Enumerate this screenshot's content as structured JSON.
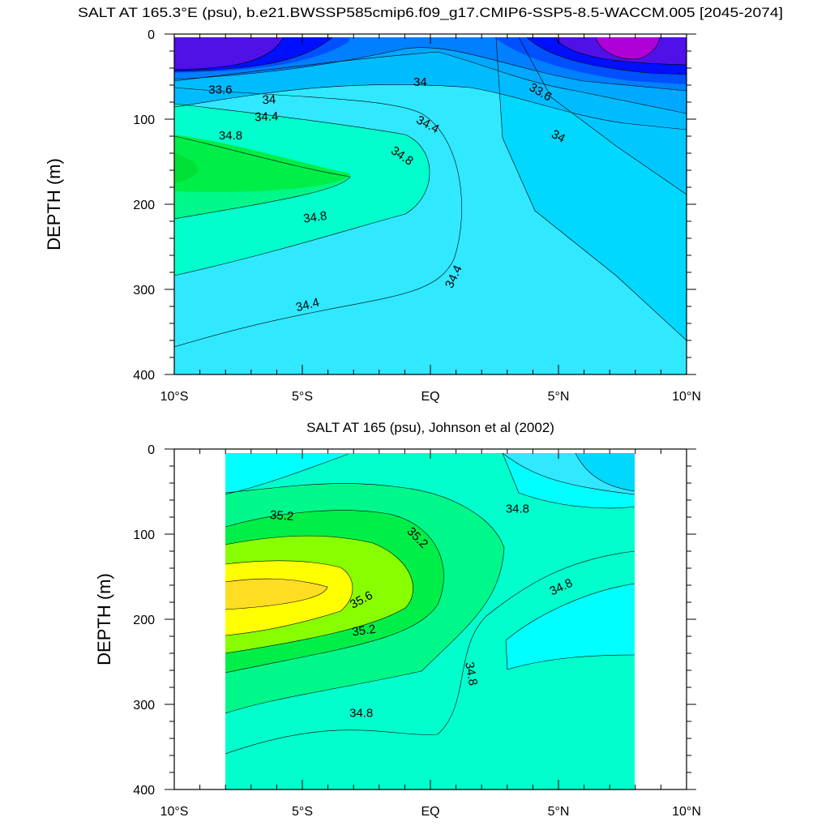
{
  "chart_data": [
    {
      "type": "contour",
      "title": "SALT AT 165.3°E (psu), b.e21.BWSSP585cmip6.f09_g17.CMIP6-SSP5-8.5-WACCM.005 [2045-2074]",
      "ylabel": "DEPTH (m)",
      "xlabel": "",
      "xlim": [
        -10,
        10
      ],
      "ylim": [
        0,
        400
      ],
      "x_ticks": [
        -10,
        -5,
        0,
        5,
        10
      ],
      "x_tick_labels": [
        "10°S",
        "5°S",
        "EQ",
        "5°N",
        "10°N"
      ],
      "y_ticks": [
        0,
        100,
        200,
        300,
        400
      ],
      "y_tick_labels": [
        "0",
        "100",
        "200",
        "300",
        "400"
      ],
      "data_extent": {
        "lat": [
          -10,
          10
        ],
        "depth": [
          5,
          400
        ]
      },
      "contour_levels": [
        33.2,
        33.4,
        33.6,
        33.8,
        34.0,
        34.2,
        34.4,
        34.6,
        34.8,
        35.0
      ],
      "fill_colors": [
        "#b000d8",
        "#7818e0",
        "#4000e8",
        "#0010ff",
        "#0060ff",
        "#0098ff",
        "#00bcff",
        "#00d8ff",
        "#30e8ff",
        "#00ffff",
        "#00ffcc",
        "#00f88a",
        "#00ee48"
      ],
      "contour_labels": [
        {
          "text": "33.6",
          "lat": -8.2,
          "depth": 65,
          "angle": 0
        },
        {
          "text": "34",
          "lat": -6.3,
          "depth": 77,
          "angle": -3
        },
        {
          "text": "34",
          "lat": -0.4,
          "depth": 56,
          "angle": 0
        },
        {
          "text": "33.6",
          "lat": 4.3,
          "depth": 68,
          "angle": 30
        },
        {
          "text": "34.4",
          "lat": -6.4,
          "depth": 97,
          "angle": -2
        },
        {
          "text": "34.4",
          "lat": -0.1,
          "depth": 106,
          "angle": 28
        },
        {
          "text": "34",
          "lat": 5.0,
          "depth": 120,
          "angle": 28
        },
        {
          "text": "34.8",
          "lat": -7.8,
          "depth": 119,
          "angle": 0
        },
        {
          "text": "34.8",
          "lat": -1.1,
          "depth": 143,
          "angle": 34
        },
        {
          "text": "34.8",
          "lat": -4.5,
          "depth": 215,
          "angle": -8
        },
        {
          "text": "34.4",
          "lat": 0.9,
          "depth": 285,
          "angle": -65
        },
        {
          "text": "34.4",
          "lat": -4.8,
          "depth": 318,
          "angle": -14
        }
      ]
    },
    {
      "type": "contour",
      "title": "SALT AT 165 (psu), Johnson et al (2002)",
      "ylabel": "DEPTH (m)",
      "xlabel": "",
      "xlim": [
        -10,
        10
      ],
      "ylim": [
        0,
        400
      ],
      "x_ticks": [
        -10,
        -5,
        0,
        5,
        10
      ],
      "x_tick_labels": [
        "10°S",
        "5°S",
        "EQ",
        "5°N",
        "10°N"
      ],
      "y_ticks": [
        0,
        100,
        200,
        300,
        400
      ],
      "y_tick_labels": [
        "0",
        "100",
        "200",
        "300",
        "400"
      ],
      "data_extent": {
        "lat": [
          -8,
          8
        ],
        "depth": [
          5,
          400
        ]
      },
      "contour_levels": [
        34.4,
        34.6,
        34.8,
        35.0,
        35.2,
        35.4,
        35.6,
        35.8
      ],
      "fill_colors": [
        "#00d8ff",
        "#30e8ff",
        "#00ffff",
        "#00ffcc",
        "#00f88a",
        "#00ee48",
        "#88ff00",
        "#ffff00",
        "#ffdd22"
      ],
      "contour_labels": [
        {
          "text": "35.2",
          "lat": -5.8,
          "depth": 78,
          "angle": 4
        },
        {
          "text": "35.2",
          "lat": -0.5,
          "depth": 104,
          "angle": 45
        },
        {
          "text": "34.8",
          "lat": 3.4,
          "depth": 70,
          "angle": 0
        },
        {
          "text": "34.8",
          "lat": 5.1,
          "depth": 162,
          "angle": -25
        },
        {
          "text": "35.6",
          "lat": -2.7,
          "depth": 177,
          "angle": -28
        },
        {
          "text": "35.2",
          "lat": -2.6,
          "depth": 213,
          "angle": -8
        },
        {
          "text": "34.8",
          "lat": 1.6,
          "depth": 264,
          "angle": 80
        },
        {
          "text": "34.8",
          "lat": -2.7,
          "depth": 310,
          "angle": 0
        }
      ]
    }
  ]
}
